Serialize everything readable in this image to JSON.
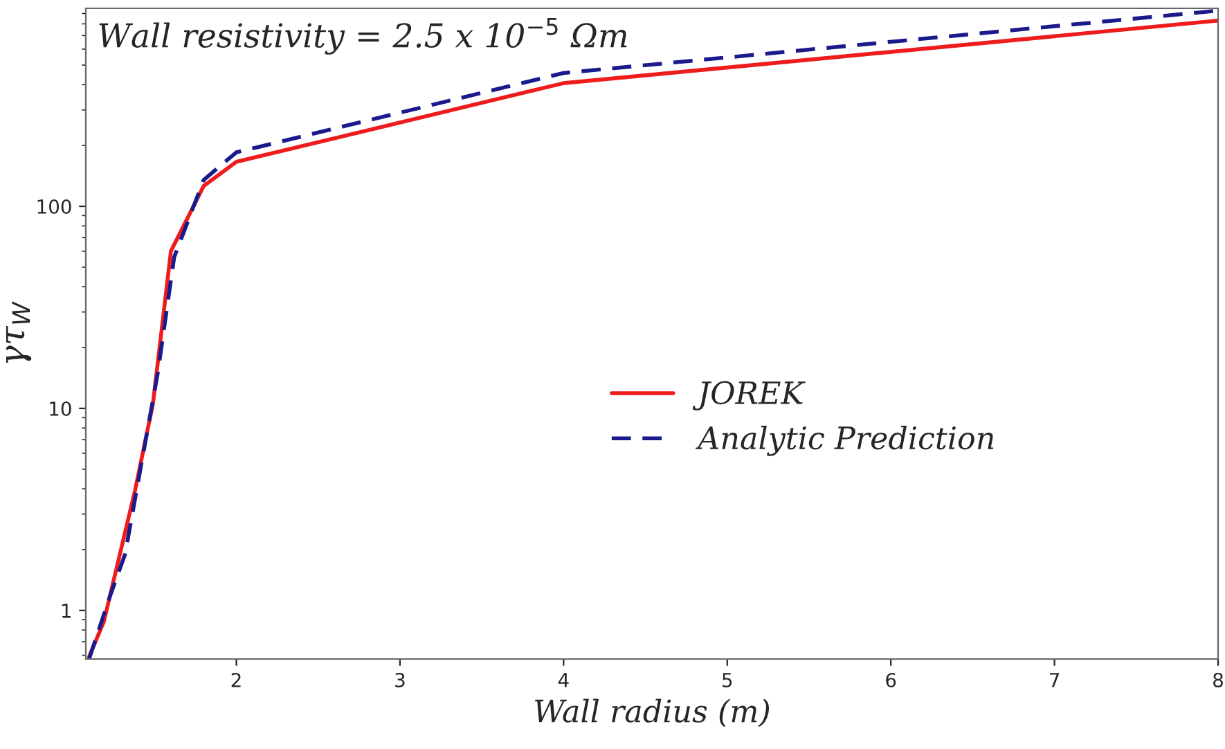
{
  "chart_data": {
    "type": "line",
    "xlabel": "Wall radius (m)",
    "ylabel": "γτ$_{W}$",
    "annotations": [
      "Wall resistivity = 2.5 x 10$^{−5}$ Ωm"
    ],
    "series": [
      {
        "name": "JOREK",
        "color": "#ee1c1c",
        "line_style": "solid",
        "x": [
          1.1,
          1.19,
          1.38,
          1.49,
          1.6,
          1.8,
          2,
          4,
          8
        ],
        "values": [
          0.59,
          0.88,
          3.9,
          10.5,
          60,
          126,
          166,
          407,
          830
        ]
      },
      {
        "name": "Analytic Prediction",
        "color": "#1a1a8c",
        "line_style": "dashed",
        "x": [
          1.1,
          1.23,
          1.32,
          1.52,
          1.62,
          1.8,
          2,
          4,
          8
        ],
        "values": [
          0.575,
          1.19,
          1.9,
          15,
          56,
          135,
          185,
          457,
          930
        ]
      }
    ],
    "log": "y",
    "xlim": [
      1.08,
      8
    ],
    "ylim": [
      0.575,
      955
    ],
    "xticks": [
      2,
      3,
      4,
      5,
      6,
      7,
      8
    ],
    "yticks": [
      1,
      10,
      100
    ],
    "grid": false,
    "legend": "center right",
    "marker": "none"
  }
}
